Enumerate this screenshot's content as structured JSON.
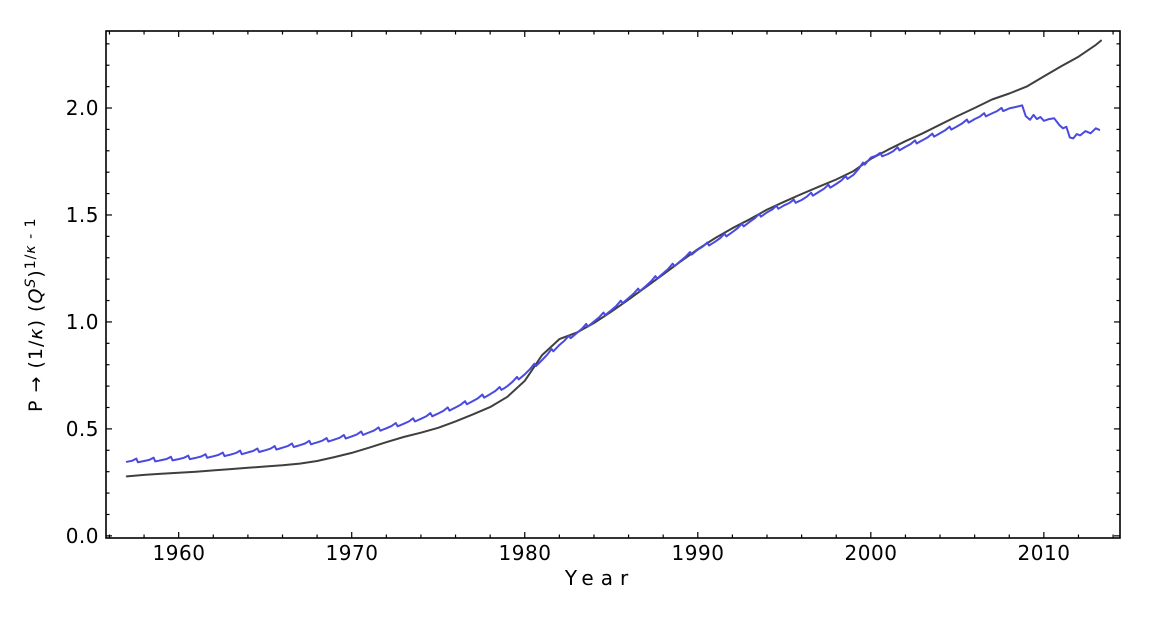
{
  "window": {
    "background": "#ffffff"
  },
  "chart_data": {
    "type": "line",
    "title": "",
    "xlabel": "Year",
    "ylabel": "P → (1/κ) (Q^S)^(1/κ - 1)",
    "ylabel_segments": [
      {
        "text": "P "
      },
      {
        "text": "→ "
      },
      {
        "text": "(1/"
      },
      {
        "text": "κ",
        "italic": true
      },
      {
        "text": ")  ("
      },
      {
        "text": "Q",
        "italic": true
      },
      {
        "text": "S",
        "italic": true,
        "sup": true
      },
      {
        "text": ")"
      },
      {
        "text": "1/",
        "sup": true
      },
      {
        "text": "κ",
        "italic": true,
        "sup": true
      },
      {
        "text": " - 1",
        "sup": true
      }
    ],
    "xlim": [
      1955.8,
      2014.4
    ],
    "ylim": [
      -0.01,
      2.36
    ],
    "grid": false,
    "legend": "none",
    "frame": true,
    "axis_color": "#000000",
    "background_color": "#ffffff",
    "x_major_ticks": [
      {
        "value": 1960,
        "label": "1960"
      },
      {
        "value": 1970,
        "label": "1970"
      },
      {
        "value": 1980,
        "label": "1980"
      },
      {
        "value": 1990,
        "label": "1990"
      },
      {
        "value": 2000,
        "label": "2000"
      },
      {
        "value": 2010,
        "label": "2010"
      }
    ],
    "x_minor_ticks": {
      "start": 1956,
      "end": 2014,
      "step": 2
    },
    "y_major_ticks": [
      {
        "value": 0.0,
        "label": "0.0"
      },
      {
        "value": 0.5,
        "label": "0.5"
      },
      {
        "value": 1.0,
        "label": "1.0"
      },
      {
        "value": 1.5,
        "label": "1.5"
      },
      {
        "value": 2.0,
        "label": "2.0"
      }
    ],
    "y_minor_ticks": {
      "start": 0.1,
      "end": 2.3,
      "step": 0.1
    },
    "series": [
      {
        "name": "smooth dark series",
        "color": "#3f3f3f",
        "stroke_width": 2,
        "wiggle_amplitude": 0,
        "points": [
          [
            1957,
            0.278
          ],
          [
            1958,
            0.285
          ],
          [
            1959,
            0.29
          ],
          [
            1960,
            0.295
          ],
          [
            1961,
            0.3
          ],
          [
            1962,
            0.306
          ],
          [
            1963,
            0.312
          ],
          [
            1964,
            0.318
          ],
          [
            1965,
            0.324
          ],
          [
            1966,
            0.33
          ],
          [
            1967,
            0.338
          ],
          [
            1968,
            0.35
          ],
          [
            1969,
            0.368
          ],
          [
            1970,
            0.388
          ],
          [
            1971,
            0.412
          ],
          [
            1972,
            0.438
          ],
          [
            1973,
            0.462
          ],
          [
            1974,
            0.482
          ],
          [
            1975,
            0.505
          ],
          [
            1976,
            0.535
          ],
          [
            1977,
            0.568
          ],
          [
            1978,
            0.602
          ],
          [
            1979,
            0.65
          ],
          [
            1980,
            0.725
          ],
          [
            1981,
            0.845
          ],
          [
            1982,
            0.92
          ],
          [
            1983,
            0.95
          ],
          [
            1984,
            0.995
          ],
          [
            1985,
            1.048
          ],
          [
            1986,
            1.105
          ],
          [
            1987,
            1.163
          ],
          [
            1988,
            1.222
          ],
          [
            1989,
            1.282
          ],
          [
            1990,
            1.34
          ],
          [
            1991,
            1.392
          ],
          [
            1992,
            1.438
          ],
          [
            1993,
            1.48
          ],
          [
            1994,
            1.525
          ],
          [
            1995,
            1.562
          ],
          [
            1996,
            1.598
          ],
          [
            1997,
            1.632
          ],
          [
            1998,
            1.666
          ],
          [
            1999,
            1.705
          ],
          [
            2000,
            1.762
          ],
          [
            2001,
            1.805
          ],
          [
            2002,
            1.845
          ],
          [
            2003,
            1.882
          ],
          [
            2004,
            1.922
          ],
          [
            2005,
            1.962
          ],
          [
            2006,
            2.0
          ],
          [
            2007,
            2.04
          ],
          [
            2008,
            2.068
          ],
          [
            2009,
            2.1
          ],
          [
            2010,
            2.148
          ],
          [
            2011,
            2.195
          ],
          [
            2012,
            2.24
          ],
          [
            2013,
            2.295
          ],
          [
            2013.3,
            2.315
          ]
        ]
      },
      {
        "name": "jagged blue series",
        "color": "#4a4ae0",
        "stroke_width": 2,
        "wiggle_amplitude": 0.013,
        "wiggle_until": 2008,
        "wiggle_profile": [
          [
            0.3,
            0.3
          ],
          [
            0.55,
            1
          ],
          [
            0.65,
            -0.35
          ],
          [
            0.85,
            -0.15
          ]
        ],
        "points": [
          [
            1957,
            0.346
          ],
          [
            1958,
            0.35
          ],
          [
            1959,
            0.354
          ],
          [
            1960,
            0.359
          ],
          [
            1961,
            0.365
          ],
          [
            1962,
            0.372
          ],
          [
            1963,
            0.38
          ],
          [
            1964,
            0.39
          ],
          [
            1965,
            0.4
          ],
          [
            1966,
            0.412
          ],
          [
            1967,
            0.424
          ],
          [
            1968,
            0.437
          ],
          [
            1969,
            0.45
          ],
          [
            1970,
            0.465
          ],
          [
            1971,
            0.483
          ],
          [
            1972,
            0.503
          ],
          [
            1973,
            0.524
          ],
          [
            1974,
            0.547
          ],
          [
            1975,
            0.572
          ],
          [
            1976,
            0.6
          ],
          [
            1977,
            0.63
          ],
          [
            1978,
            0.662
          ],
          [
            1979,
            0.7
          ],
          [
            1980,
            0.755
          ],
          [
            1981,
            0.822
          ],
          [
            1982,
            0.892
          ],
          [
            1983,
            0.948
          ],
          [
            1984,
            1.002
          ],
          [
            1985,
            1.055
          ],
          [
            1986,
            1.112
          ],
          [
            1987,
            1.168
          ],
          [
            1988,
            1.228
          ],
          [
            1989,
            1.285
          ],
          [
            1990,
            1.338
          ],
          [
            1991,
            1.375
          ],
          [
            1992,
            1.42
          ],
          [
            1993,
            1.468
          ],
          [
            1994,
            1.512
          ],
          [
            1995,
            1.545
          ],
          [
            1996,
            1.57
          ],
          [
            1997,
            1.608
          ],
          [
            1998,
            1.645
          ],
          [
            1999,
            1.688
          ],
          [
            2000,
            1.768
          ],
          [
            2001,
            1.785
          ],
          [
            2002,
            1.818
          ],
          [
            2003,
            1.85
          ],
          [
            2004,
            1.882
          ],
          [
            2005,
            1.915
          ],
          [
            2006,
            1.948
          ],
          [
            2007,
            1.975
          ],
          [
            2008,
            1.998
          ],
          [
            2008.4,
            2.005
          ],
          [
            2008.75,
            2.012
          ],
          [
            2008.95,
            1.962
          ],
          [
            2009.2,
            1.945
          ],
          [
            2009.4,
            1.968
          ],
          [
            2009.6,
            1.948
          ],
          [
            2009.8,
            1.958
          ],
          [
            2010,
            1.94
          ],
          [
            2010.3,
            1.948
          ],
          [
            2010.6,
            1.952
          ],
          [
            2010.9,
            1.92
          ],
          [
            2011.1,
            1.905
          ],
          [
            2011.3,
            1.912
          ],
          [
            2011.5,
            1.862
          ],
          [
            2011.7,
            1.858
          ],
          [
            2011.9,
            1.878
          ],
          [
            2012.1,
            1.872
          ],
          [
            2012.4,
            1.892
          ],
          [
            2012.7,
            1.882
          ],
          [
            2013,
            1.905
          ],
          [
            2013.2,
            1.898
          ]
        ]
      }
    ]
  }
}
